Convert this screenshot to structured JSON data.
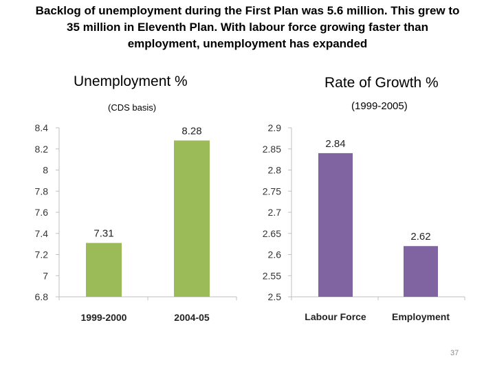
{
  "headline": {
    "line1": "Backlog of unemployment during the First Plan was 5.6 million. This grew to",
    "line2": "35 million in Eleventh Plan. With labour force growing faster than",
    "line3": "employment, unemployment has expanded"
  },
  "page_number": "37",
  "colors": {
    "green": "#9bbb59",
    "purple": "#8064a2",
    "axis": "#bfbfbf"
  },
  "chart_data": [
    {
      "type": "bar",
      "title": "Unemployment %",
      "subtitle": "(CDS basis)",
      "categories": [
        "1999-2000",
        "2004-05"
      ],
      "values": [
        7.31,
        8.28
      ],
      "value_labels": [
        "7.31",
        "8.28"
      ],
      "ylim": [
        6.8,
        8.4
      ],
      "yticks": [
        "8.4",
        "8.2",
        "8",
        "7.8",
        "7.6",
        "7.4",
        "7.2",
        "7",
        "6.8"
      ],
      "ytick_values": [
        8.4,
        8.2,
        8.0,
        7.8,
        7.6,
        7.4,
        7.2,
        7.0,
        6.8
      ],
      "color": "#9bbb59"
    },
    {
      "type": "bar",
      "title": "Rate of Growth %",
      "subtitle": "(1999-2005)",
      "categories": [
        "Labour Force",
        "Employment"
      ],
      "values": [
        2.84,
        2.62
      ],
      "value_labels": [
        "2.84",
        "2.62"
      ],
      "ylim": [
        2.5,
        2.9
      ],
      "yticks": [
        "2.9",
        "2.85",
        "2.8",
        "2.75",
        "2.7",
        "2.65",
        "2.6",
        "2.55",
        "2.5"
      ],
      "ytick_values": [
        2.9,
        2.85,
        2.8,
        2.75,
        2.7,
        2.65,
        2.6,
        2.55,
        2.5
      ],
      "color": "#8064a2"
    }
  ]
}
